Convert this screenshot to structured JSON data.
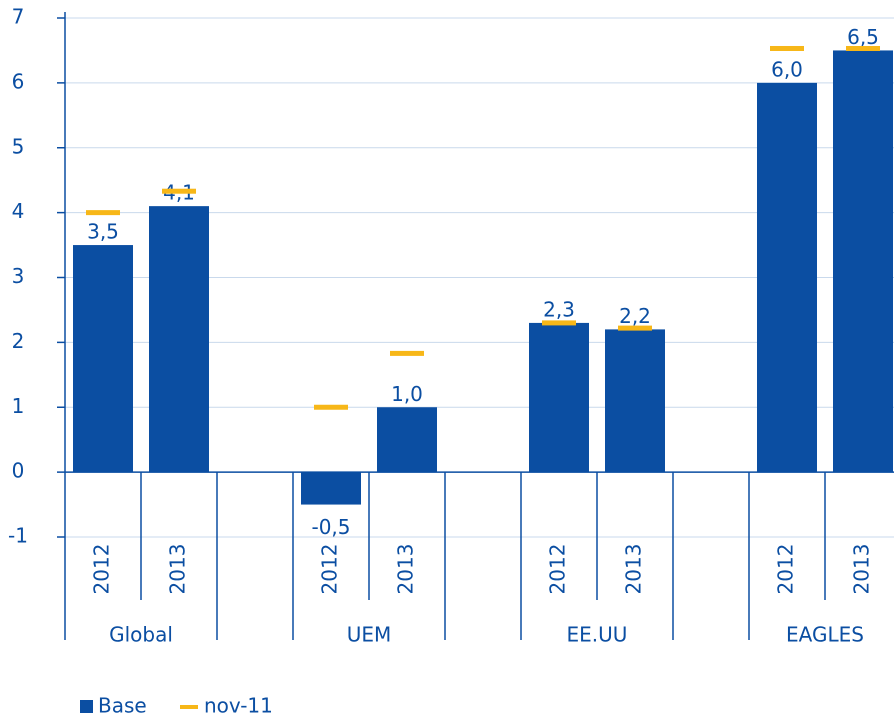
{
  "chart_data": {
    "type": "bar",
    "groups": [
      "Global",
      "UEM",
      "EE.UU",
      "EAGLES"
    ],
    "categories": [
      "2012",
      "2013",
      "2012",
      "2013",
      "2012",
      "2013",
      "2012",
      "2013"
    ],
    "series": [
      {
        "name": "Base",
        "color": "#0b4ea2",
        "values": [
          3.5,
          4.1,
          -0.5,
          1.0,
          2.3,
          2.2,
          6.0,
          6.5
        ],
        "value_labels": [
          "3,5",
          "4,1",
          "-0,5",
          "1,0",
          "2,3",
          "2,2",
          "6,0",
          "6,5"
        ]
      },
      {
        "name": "nov-11",
        "color": "#f7b718",
        "values": [
          4.0,
          4.33,
          1.0,
          1.83,
          2.3,
          2.22,
          6.53,
          6.53
        ]
      }
    ],
    "ylim": [
      -1,
      7
    ],
    "yticks": [
      -1,
      0,
      1,
      2,
      3,
      4,
      5,
      6,
      7
    ],
    "grid": true
  }
}
